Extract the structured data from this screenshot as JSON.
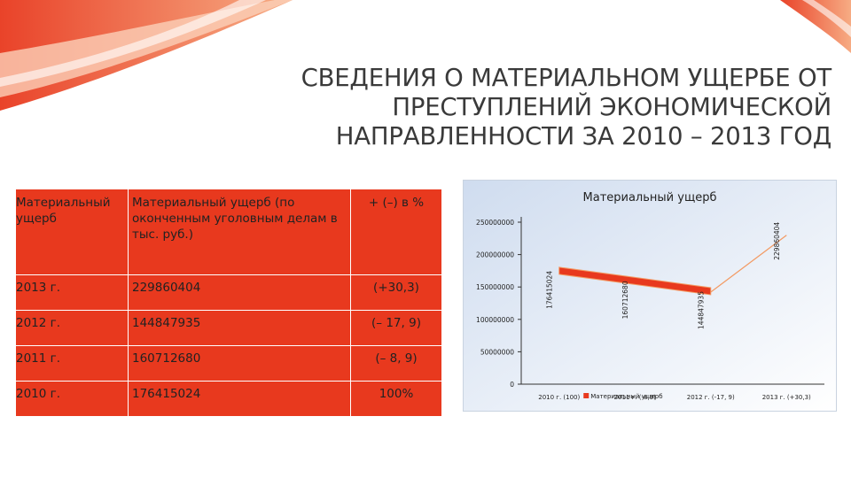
{
  "title_lines": [
    "СВЕДЕНИЯ О МАТЕРИАЛЬНОМ УЩЕРБЕ ОТ",
    "ПРЕСТУПЛЕНИЙ ЭКОНОМИЧЕСКОЙ",
    "НАПРАВЛЕННОСТИ ЗА 2010 – 2013 ГОД"
  ],
  "table": {
    "headers": {
      "col1": "Материальный ущерб",
      "col2": "Материальный ущерб (по оконченным уголовным делам в тыс. руб.)",
      "col3": "+ (–) в %"
    },
    "rows": [
      {
        "year": "2013 г.",
        "value": "229860404",
        "change": "(+30,3)"
      },
      {
        "year": "2012 г.",
        "value": "144847935",
        "change": "(– 17, 9)"
      },
      {
        "year": "2011 г.",
        "value": "160712680",
        "change": "(– 8, 9)"
      },
      {
        "year": "2010 г.",
        "value": "176415024",
        "change": "100%"
      }
    ]
  },
  "chart_data": {
    "type": "line",
    "title": "Материальный ущерб",
    "categories": [
      "2010 г. (100)",
      "2011 г. (-8,9)",
      "2012 г. (-17, 9)",
      "2013 г. (+30,3)"
    ],
    "series": [
      {
        "name": "Материальный ущерб",
        "values": [
          176415024,
          160712680,
          144847935,
          229860404
        ]
      }
    ],
    "data_labels": [
      "176415024",
      "160712680",
      "144847935",
      "229860404"
    ],
    "yticks": [
      "0",
      "50000000",
      "100000000",
      "150000000",
      "200000000",
      "250000000"
    ],
    "ylim": [
      0,
      250000000
    ],
    "grid": false,
    "legend": "bottom",
    "colors": {
      "series": "#e8391e",
      "series_light": "#f39a63",
      "axis": "#333333"
    }
  },
  "colors": {
    "accent": "#e8391e",
    "title": "#3a3a3a",
    "chart_bg": "#dfe9f5"
  }
}
